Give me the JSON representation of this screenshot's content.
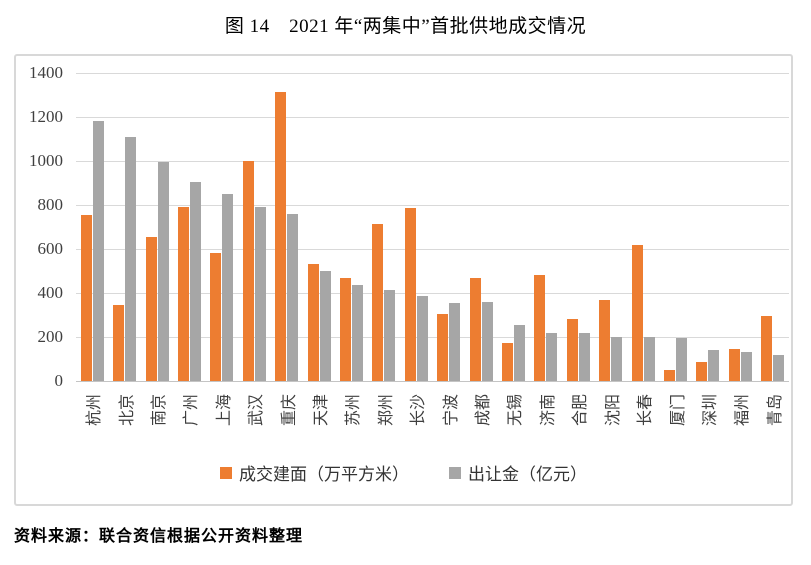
{
  "source": "资料来源：联合资信根据公开资料整理",
  "chart_data": {
    "type": "bar",
    "title": "图 14　2021 年“两集中”首批供地成交情况",
    "categories": [
      "杭州",
      "北京",
      "南京",
      "广州",
      "上海",
      "武汉",
      "重庆",
      "天津",
      "苏州",
      "郑州",
      "长沙",
      "宁波",
      "成都",
      "无锡",
      "济南",
      "合肥",
      "沈阳",
      "长春",
      "厦门",
      "深圳",
      "福州",
      "青岛"
    ],
    "series": [
      {
        "name": "成交建面（万平方米）",
        "color": "#ED7D31",
        "values": [
          755,
          345,
          655,
          790,
          580,
          1000,
          1315,
          530,
          470,
          715,
          785,
          305,
          470,
          175,
          480,
          280,
          370,
          620,
          50,
          85,
          145,
          295
        ]
      },
      {
        "name": "出让金（亿元）",
        "color": "#A6A6A6",
        "values": [
          1180,
          1110,
          995,
          905,
          850,
          790,
          760,
          500,
          435,
          415,
          385,
          355,
          360,
          255,
          220,
          220,
          200,
          200,
          195,
          140,
          130,
          120
        ]
      }
    ],
    "ylim": [
      0,
      1400
    ],
    "ytick_step": 200,
    "grid": true,
    "legend_position": "bottom",
    "xlabel": "",
    "ylabel": ""
  }
}
